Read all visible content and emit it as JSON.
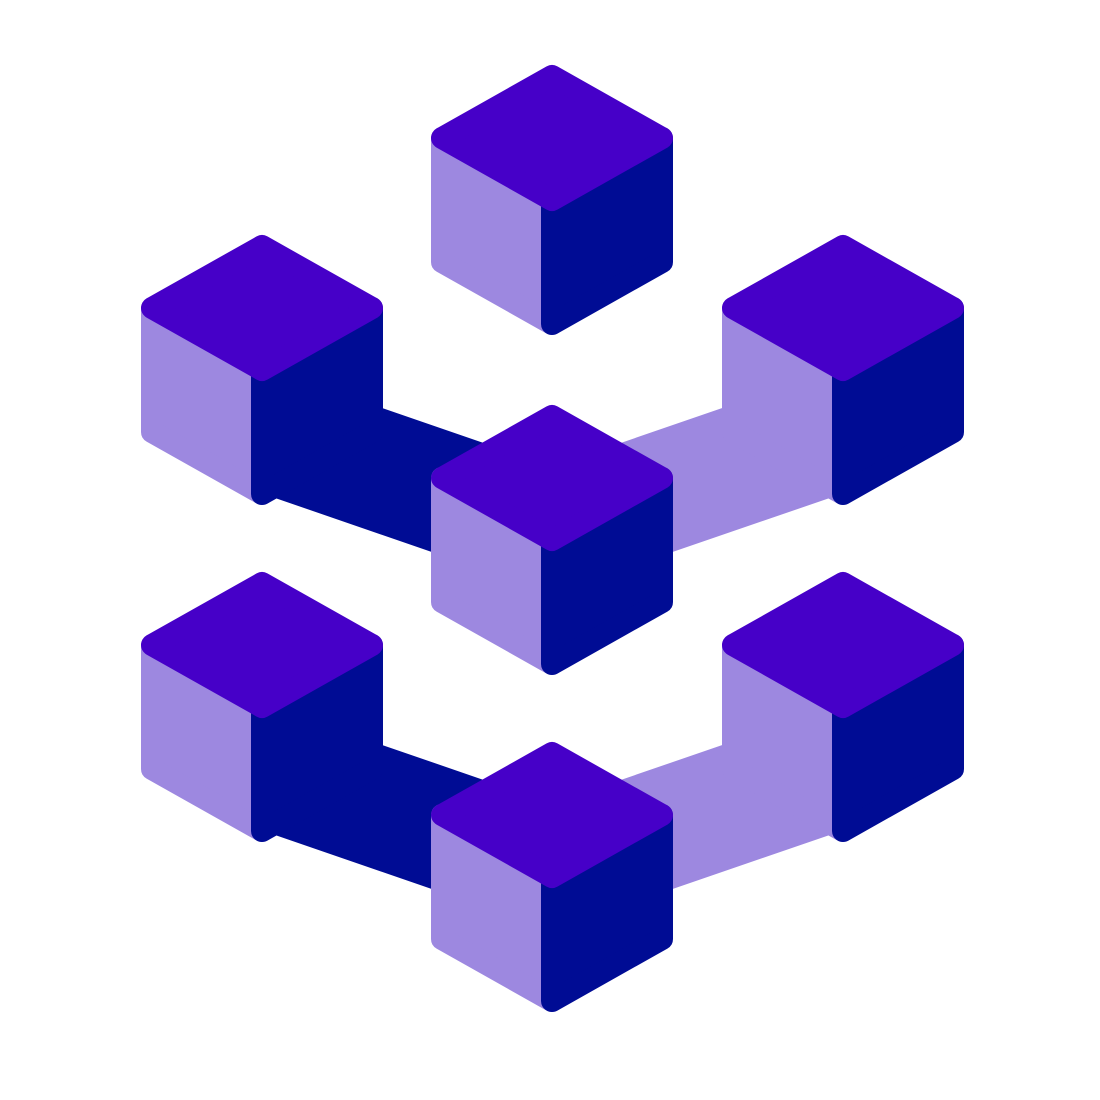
{
  "logo": {
    "icon": "isometric-cube-network-icon",
    "colors": {
      "background": "#ffffff",
      "cube_top": "#4600c8",
      "cube_left": "#9d88e0",
      "cube_right": "#000c94",
      "connector_dark": "#000c94",
      "connector_light": "#9d88e0"
    }
  }
}
